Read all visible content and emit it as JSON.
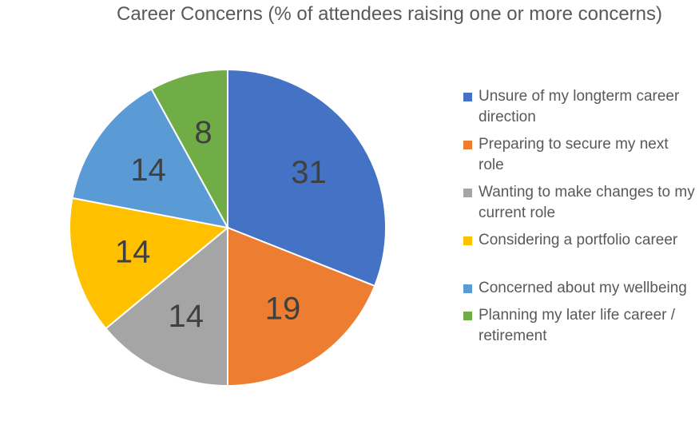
{
  "chart_data": {
    "type": "pie",
    "title": "Career Concerns (% of attendees raising one or more concerns)",
    "categories": [
      "Unsure of my longterm career direction",
      "Preparing to secure my next role",
      "Wanting to make changes to my current role",
      "Considering a portfolio career",
      "Concerned about my wellbeing",
      "Planning my later life career / retirement"
    ],
    "values": [
      31,
      19,
      14,
      14,
      14,
      8
    ],
    "data_labels": [
      "31",
      "19",
      "14",
      "14",
      "14",
      "8"
    ],
    "colors": [
      "#4472C4",
      "#ED7D31",
      "#A5A5A5",
      "#FFC000",
      "#5B9BD5",
      "#70AD47"
    ],
    "legend_position": "right"
  }
}
